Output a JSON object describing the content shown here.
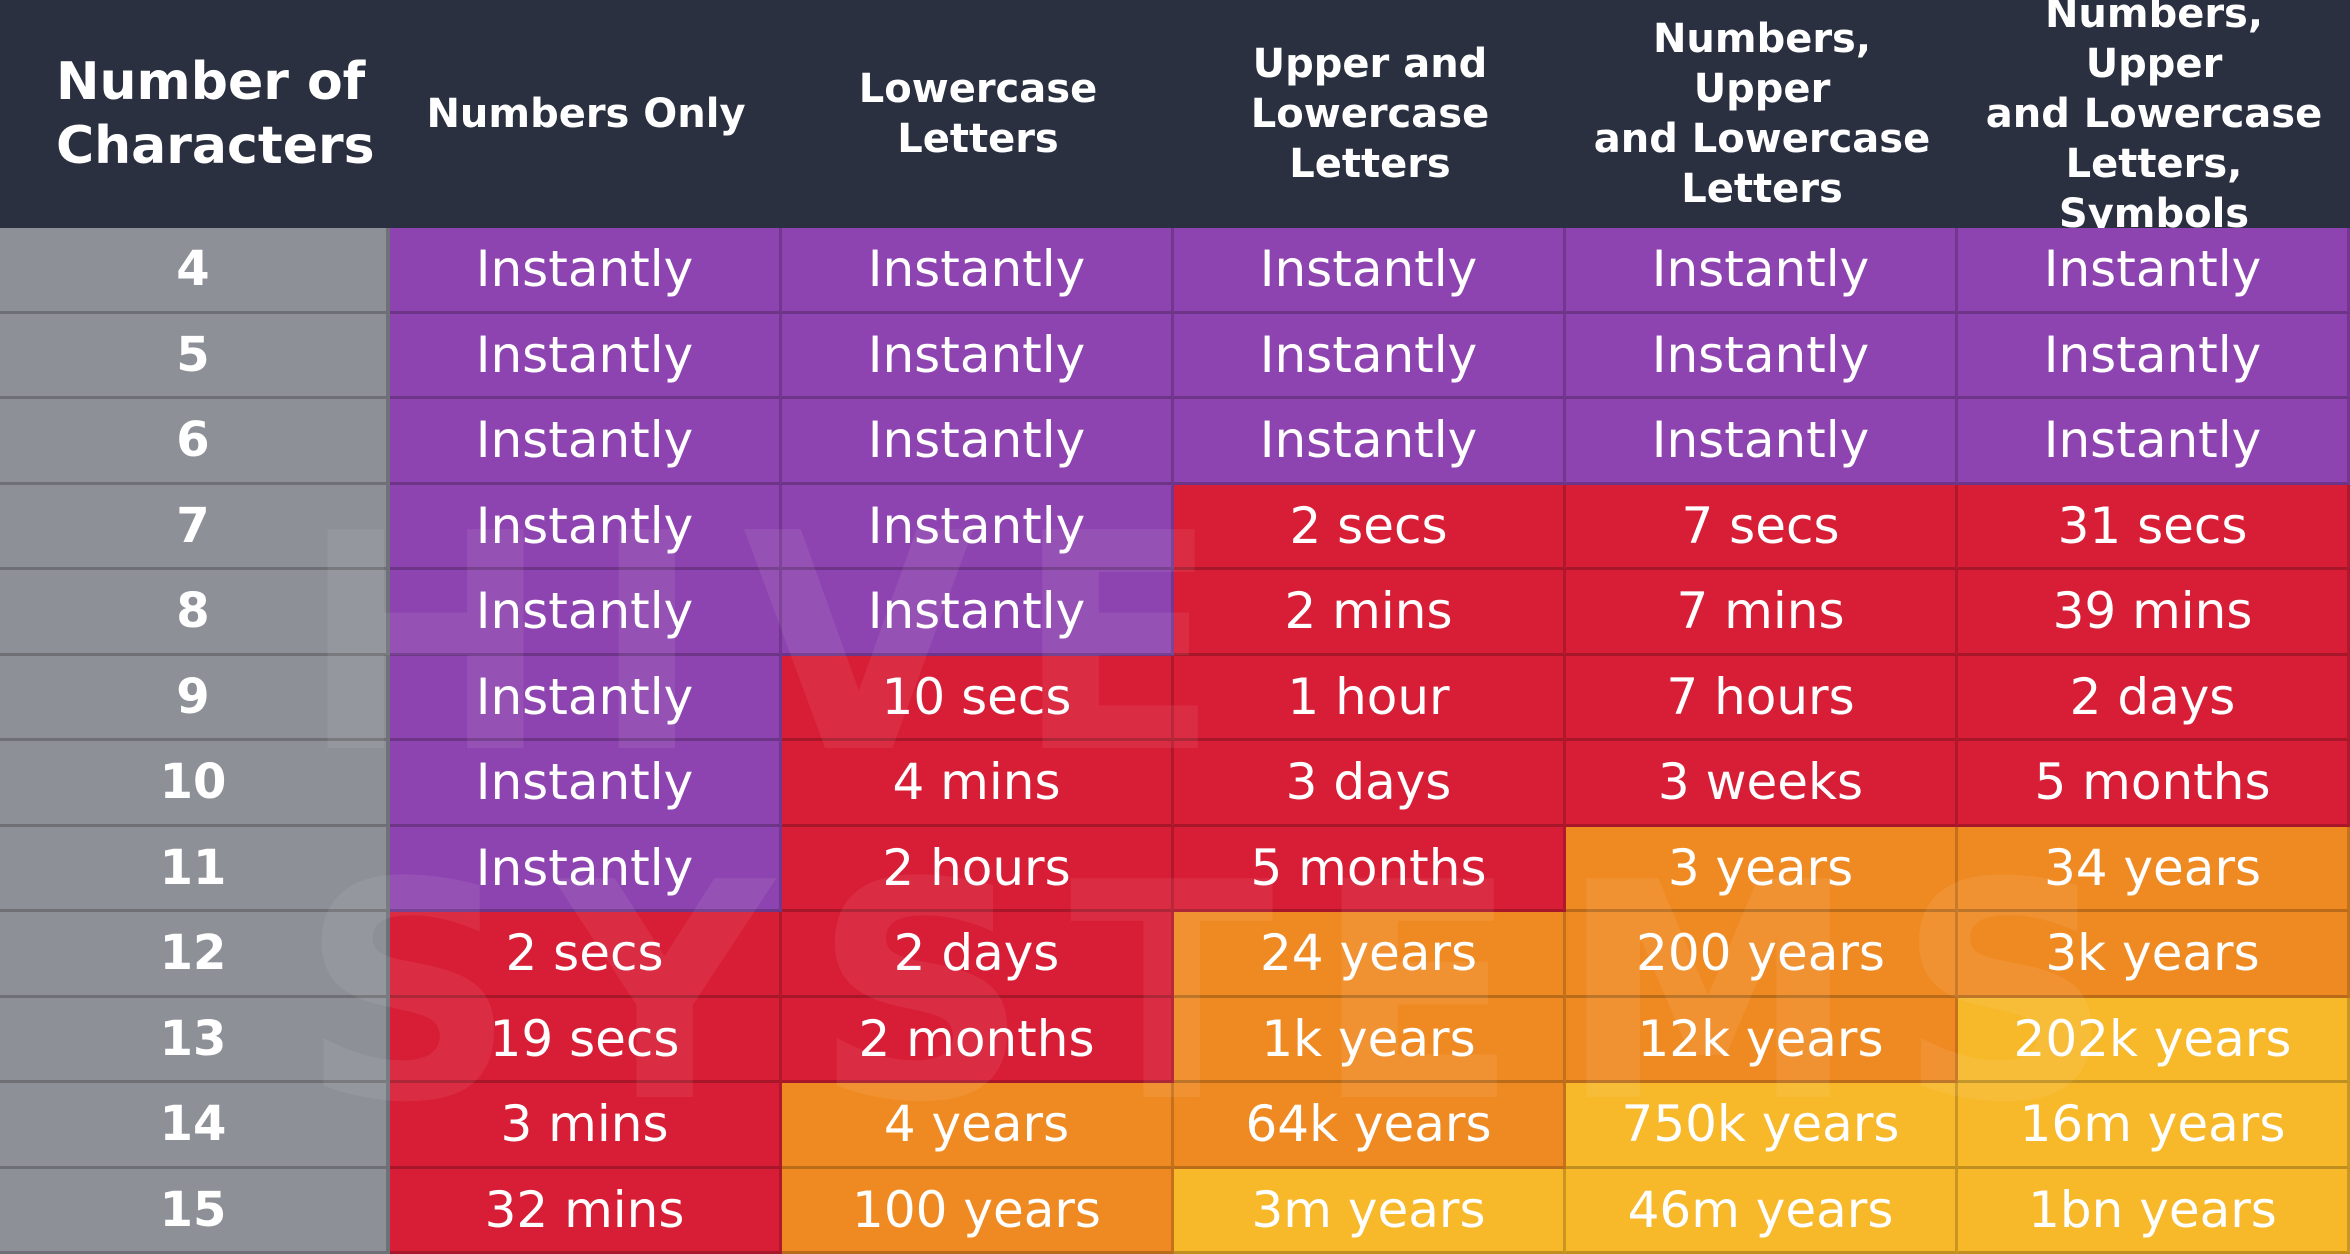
{
  "chart_data": {
    "type": "table",
    "columns": [
      "Number of\nCharacters",
      "Numbers Only",
      "Lowercase\nLetters",
      "Upper and\nLowercase\nLetters",
      "Numbers, Upper\nand Lowercase\nLetters",
      "Numbers, Upper\nand Lowercase\nLetters, Symbols"
    ],
    "rows": [
      [
        "4",
        "Instantly",
        "Instantly",
        "Instantly",
        "Instantly",
        "Instantly"
      ],
      [
        "5",
        "Instantly",
        "Instantly",
        "Instantly",
        "Instantly",
        "Instantly"
      ],
      [
        "6",
        "Instantly",
        "Instantly",
        "Instantly",
        "Instantly",
        "Instantly"
      ],
      [
        "7",
        "Instantly",
        "Instantly",
        "2 secs",
        "7 secs",
        "31 secs"
      ],
      [
        "8",
        "Instantly",
        "Instantly",
        "2 mins",
        "7 mins",
        "39 mins"
      ],
      [
        "9",
        "Instantly",
        "10 secs",
        "1 hour",
        "7 hours",
        "2 days"
      ],
      [
        "10",
        "Instantly",
        "4 mins",
        "3 days",
        "3 weeks",
        "5 months"
      ],
      [
        "11",
        "Instantly",
        "2 hours",
        "5 months",
        "3 years",
        "34 years"
      ],
      [
        "12",
        "2 secs",
        "2 days",
        "24 years",
        "200 years",
        "3k years"
      ],
      [
        "13",
        "19 secs",
        "2 months",
        "1k years",
        "12k years",
        "202k years"
      ],
      [
        "14",
        "3 mins",
        "4 years",
        "64k years",
        "750k years",
        "16m years"
      ],
      [
        "15",
        "32 mins",
        "100 years",
        "3m years",
        "46m years",
        "1bn years"
      ]
    ],
    "cell_level": [
      [
        0,
        0,
        0,
        0,
        0
      ],
      [
        0,
        0,
        0,
        0,
        0
      ],
      [
        0,
        0,
        0,
        0,
        0
      ],
      [
        0,
        0,
        1,
        1,
        1
      ],
      [
        0,
        0,
        1,
        1,
        1
      ],
      [
        0,
        1,
        1,
        1,
        1
      ],
      [
        0,
        1,
        1,
        1,
        1
      ],
      [
        0,
        1,
        1,
        2,
        2
      ],
      [
        1,
        1,
        2,
        2,
        2
      ],
      [
        1,
        1,
        2,
        2,
        3
      ],
      [
        1,
        2,
        2,
        3,
        3
      ],
      [
        1,
        2,
        3,
        3,
        3
      ]
    ],
    "level_colors": [
      "#8e44b0",
      "#d81e36",
      "#ef8a22",
      "#f7b829"
    ],
    "row_label_color": "#8d9097",
    "header_color": "#2a3040"
  },
  "watermark": "HIVE SYSTEMS"
}
